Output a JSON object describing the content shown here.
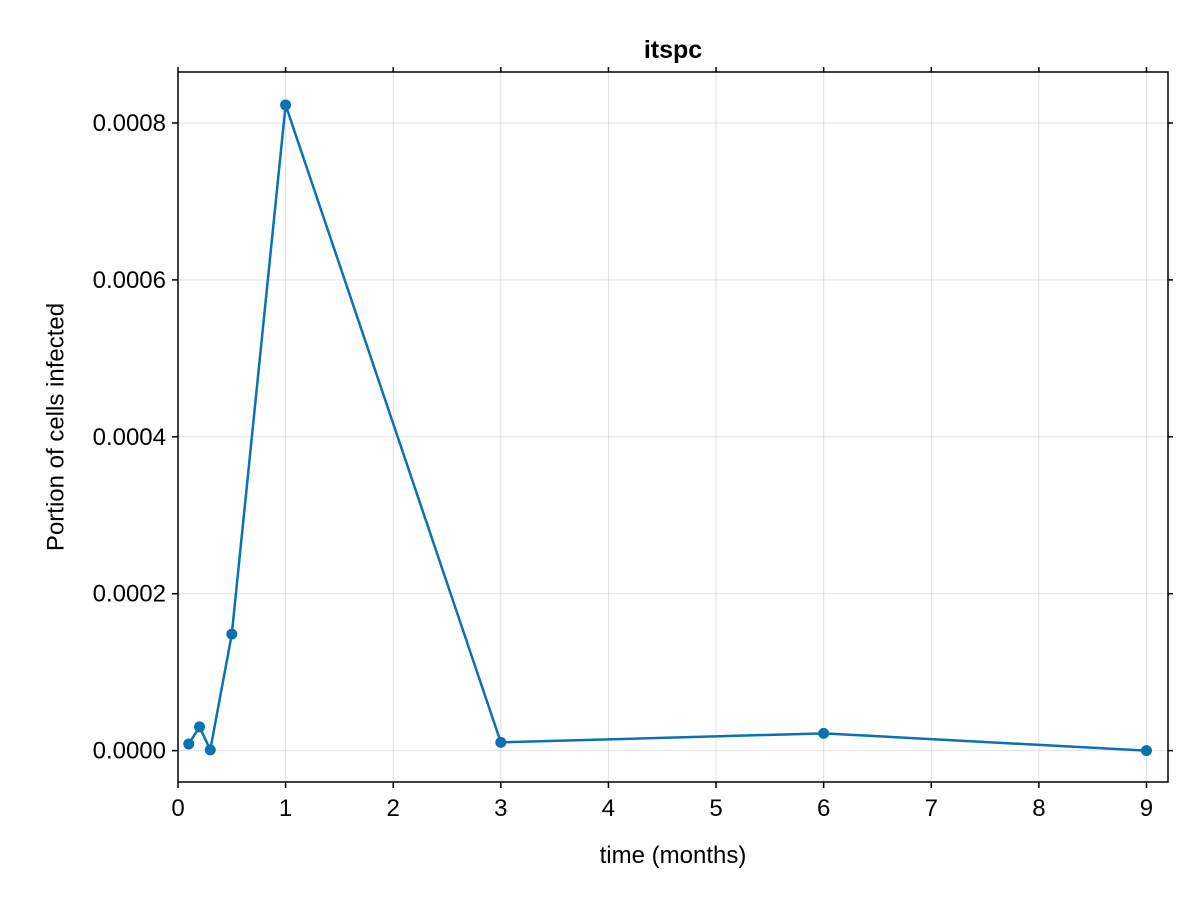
{
  "chart_data": {
    "type": "line",
    "title": "itspc",
    "xlabel": "time (months)",
    "ylabel": "Portion of cells infected",
    "xlim": [
      0,
      9.2
    ],
    "ylim": [
      -4e-05,
      0.000865
    ],
    "xticks": [
      0,
      1,
      2,
      3,
      4,
      5,
      6,
      7,
      8,
      9
    ],
    "xtick_labels": [
      "0",
      "1",
      "2",
      "3",
      "4",
      "5",
      "6",
      "7",
      "8",
      "9"
    ],
    "yticks": [
      0.0,
      0.0002,
      0.0004,
      0.0006,
      0.0008
    ],
    "ytick_labels": [
      "0.0000",
      "0.0002",
      "0.0004",
      "0.0006",
      "0.0008"
    ],
    "grid": true,
    "markers": true,
    "series": [
      {
        "color": "#0a72b0",
        "x": [
          0.1,
          0.2,
          0.3,
          0.5,
          1,
          3,
          6,
          9
        ],
        "y": [
          8.5e-06,
          3.02e-05,
          1e-06,
          0.0001485,
          0.000823,
          1.05e-05,
          2.2e-05,
          0.0
        ]
      }
    ]
  }
}
